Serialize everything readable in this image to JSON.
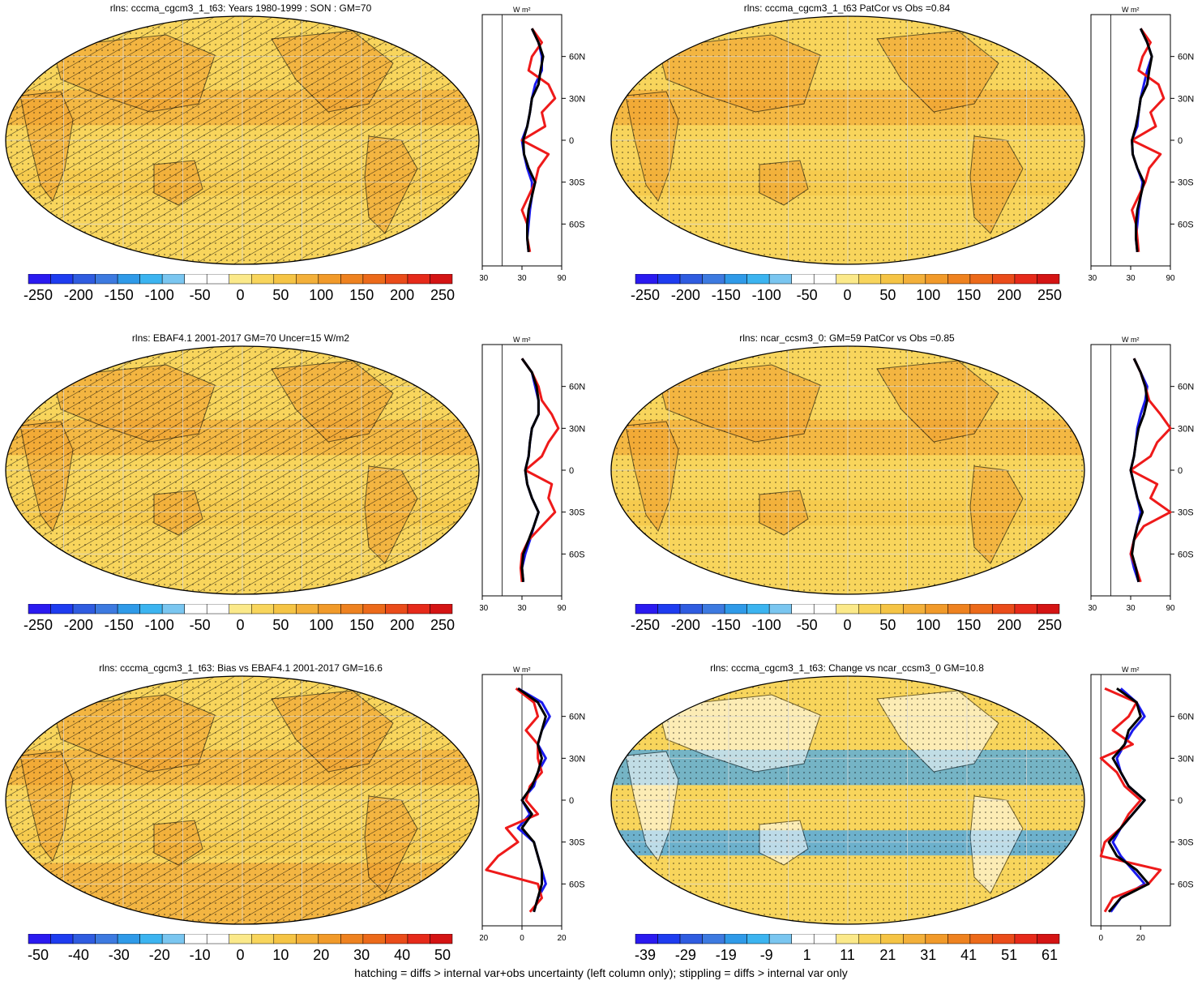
{
  "caption": "hatching = diffs > internal var+obs uncertainty (left column only); stippling = diffs > internal var only",
  "colors": {
    "map_fill": "#f8d55c",
    "map_warm": "#f0a030",
    "map_cool": "#4aa8e8",
    "profile_blue": "#1a1aee",
    "profile_red": "#ee1a1a",
    "profile_black": "#000000"
  },
  "chart_data": [
    {
      "type": "map_with_zonal_profile",
      "title": "rlns: cccma_cgcm3_1_t63: Years 1980-1999 : SON : GM=70",
      "colorbar_ticks": [
        "-250",
        "-200",
        "-150",
        "-100",
        "-50",
        "0",
        "50",
        "100",
        "150",
        "200",
        "250"
      ],
      "colorbar_colors": [
        "#2a1af0",
        "#1e3cf0",
        "#2f5ce0",
        "#3d7ae0",
        "#2f9ae8",
        "#3cb4f0",
        "#7ac6f0",
        "#ffffff",
        "#ffffff",
        "#fbe98a",
        "#f8d55c",
        "#f5c445",
        "#f3b03a",
        "#f19a2a",
        "#ee8220",
        "#ec6a1a",
        "#ea4c1a",
        "#e62a1a",
        "#d41414"
      ],
      "profile_unit": "W m²",
      "profile_xticks": [
        "-30",
        "30",
        "90"
      ],
      "profile_xrange": [
        -30,
        90
      ],
      "profile_lat_ticks": [
        "60N",
        "30N",
        "0",
        "30S",
        "60S"
      ],
      "hatching": true,
      "profile": {
        "lat": [
          80,
          70,
          60,
          50,
          40,
          30,
          20,
          10,
          0,
          -10,
          -20,
          -30,
          -40,
          -50,
          -60,
          -70,
          -80
        ],
        "blue": [
          45,
          55,
          60,
          60,
          50,
          45,
          42,
          38,
          30,
          33,
          38,
          45,
          45,
          42,
          40,
          38,
          40
        ],
        "red": [
          45,
          60,
          45,
          40,
          70,
          80,
          60,
          65,
          30,
          70,
          55,
          50,
          40,
          30,
          38,
          38,
          42
        ],
        "black": [
          45,
          55,
          62,
          58,
          55,
          45,
          42,
          38,
          32,
          33,
          40,
          50,
          45,
          40,
          38,
          38,
          40
        ]
      }
    },
    {
      "type": "map_with_zonal_profile",
      "title": "rlns: cccma_cgcm3_1_t63 PatCor vs Obs =0.84",
      "colorbar_ticks": [
        "-250",
        "-200",
        "-150",
        "-100",
        "-50",
        "0",
        "50",
        "100",
        "150",
        "200",
        "250"
      ],
      "colorbar_colors": [
        "#2a1af0",
        "#1e3cf0",
        "#2f5ce0",
        "#3d7ae0",
        "#2f9ae8",
        "#3cb4f0",
        "#7ac6f0",
        "#ffffff",
        "#ffffff",
        "#fbe98a",
        "#f8d55c",
        "#f5c445",
        "#f3b03a",
        "#f19a2a",
        "#ee8220",
        "#ec6a1a",
        "#ea4c1a",
        "#e62a1a",
        "#d41414"
      ],
      "profile_unit": "W m²",
      "profile_xticks": [
        "-30",
        "30",
        "90"
      ],
      "profile_xrange": [
        -30,
        90
      ],
      "profile_lat_ticks": [
        "60N",
        "30N",
        "0",
        "30S",
        "60S"
      ],
      "hatching": false,
      "profile": {
        "lat": [
          80,
          70,
          60,
          50,
          40,
          30,
          20,
          10,
          0,
          -10,
          -20,
          -30,
          -40,
          -50,
          -60,
          -70,
          -80
        ],
        "blue": [
          45,
          55,
          62,
          55,
          50,
          45,
          42,
          40,
          32,
          33,
          40,
          48,
          45,
          42,
          40,
          38,
          40
        ],
        "red": [
          45,
          60,
          48,
          42,
          72,
          80,
          60,
          68,
          32,
          75,
          58,
          52,
          42,
          32,
          38,
          40,
          42
        ],
        "black": [
          45,
          55,
          62,
          58,
          55,
          45,
          42,
          38,
          32,
          33,
          40,
          50,
          45,
          40,
          38,
          38,
          40
        ]
      }
    },
    {
      "type": "map_with_zonal_profile",
      "title": "rlns: EBAF4.1 2001-2017 GM=70 Uncer=15 W/m2",
      "colorbar_ticks": [
        "-250",
        "-200",
        "-150",
        "-100",
        "-50",
        "0",
        "50",
        "100",
        "150",
        "200",
        "250"
      ],
      "colorbar_colors": [
        "#2a1af0",
        "#1e3cf0",
        "#2f5ce0",
        "#3d7ae0",
        "#2f9ae8",
        "#3cb4f0",
        "#7ac6f0",
        "#ffffff",
        "#ffffff",
        "#fbe98a",
        "#f8d55c",
        "#f5c445",
        "#f3b03a",
        "#f19a2a",
        "#ee8220",
        "#ec6a1a",
        "#ea4c1a",
        "#e62a1a",
        "#d41414"
      ],
      "profile_unit": "W m²",
      "profile_xticks": [
        "-30",
        "30",
        "90"
      ],
      "profile_xrange": [
        -30,
        90
      ],
      "profile_lat_ticks": [
        "60N",
        "30N",
        "0",
        "30S",
        "60S"
      ],
      "hatching": true,
      "profile": {
        "lat": [
          80,
          70,
          60,
          50,
          40,
          30,
          20,
          10,
          0,
          -10,
          -20,
          -30,
          -40,
          -50,
          -60,
          -70,
          -80
        ],
        "blue": [
          30,
          45,
          50,
          55,
          55,
          45,
          42,
          40,
          35,
          38,
          45,
          55,
          48,
          42,
          35,
          30,
          32
        ],
        "red": [
          30,
          45,
          55,
          60,
          75,
          85,
          70,
          60,
          35,
          75,
          70,
          80,
          60,
          40,
          30,
          28,
          30
        ],
        "black": [
          30,
          45,
          52,
          55,
          55,
          45,
          42,
          40,
          35,
          38,
          45,
          55,
          48,
          40,
          32,
          30,
          32
        ]
      }
    },
    {
      "type": "map_with_zonal_profile",
      "title": "rlns: ncar_ccsm3_0: GM=59 PatCor vs Obs =0.85",
      "colorbar_ticks": [
        "-250",
        "-200",
        "-150",
        "-100",
        "-50",
        "0",
        "50",
        "100",
        "150",
        "200",
        "250"
      ],
      "colorbar_colors": [
        "#2a1af0",
        "#1e3cf0",
        "#2f5ce0",
        "#3d7ae0",
        "#2f9ae8",
        "#3cb4f0",
        "#7ac6f0",
        "#ffffff",
        "#ffffff",
        "#fbe98a",
        "#f8d55c",
        "#f5c445",
        "#f3b03a",
        "#f19a2a",
        "#ee8220",
        "#ec6a1a",
        "#ea4c1a",
        "#e62a1a",
        "#d41414"
      ],
      "profile_unit": "W m²",
      "profile_xticks": [
        "-30",
        "30",
        "90"
      ],
      "profile_xrange": [
        -30,
        90
      ],
      "profile_lat_ticks": [
        "60N",
        "30N",
        "0",
        "30S",
        "60S"
      ],
      "hatching": false,
      "profile": {
        "lat": [
          80,
          70,
          60,
          50,
          40,
          30,
          20,
          10,
          0,
          -10,
          -20,
          -30,
          -40,
          -50,
          -60,
          -70,
          -80
        ],
        "blue": [
          35,
          45,
          55,
          52,
          45,
          40,
          38,
          35,
          30,
          35,
          40,
          45,
          40,
          35,
          30,
          35,
          42
        ],
        "red": [
          35,
          45,
          52,
          58,
          75,
          90,
          70,
          60,
          30,
          70,
          60,
          90,
          50,
          35,
          30,
          38,
          45
        ],
        "black": [
          35,
          45,
          52,
          55,
          50,
          42,
          38,
          35,
          30,
          35,
          40,
          48,
          40,
          35,
          32,
          38,
          42
        ]
      }
    },
    {
      "type": "map_with_zonal_profile",
      "title": "rlns: cccma_cgcm3_1_t63: Bias vs EBAF4.1 2001-2017  GM=16.6",
      "colorbar_ticks": [
        "-50",
        "-40",
        "-30",
        "-20",
        "-10",
        "0",
        "10",
        "20",
        "30",
        "40",
        "50"
      ],
      "colorbar_colors": [
        "#2a1af0",
        "#1e3cf0",
        "#2f5ce0",
        "#3d7ae0",
        "#2f9ae8",
        "#3cb4f0",
        "#7ac6f0",
        "#ffffff",
        "#ffffff",
        "#fbe98a",
        "#f8d55c",
        "#f5c445",
        "#f3b03a",
        "#f19a2a",
        "#ee8220",
        "#ec6a1a",
        "#ea4c1a",
        "#e62a1a",
        "#d41414"
      ],
      "profile_unit": "W m²",
      "profile_xticks": [
        "-20",
        "0",
        "20"
      ],
      "profile_xrange": [
        -20,
        20
      ],
      "profile_lat_ticks": [
        "60N",
        "30N",
        "0",
        "30S",
        "60S"
      ],
      "hatching": true,
      "profile": {
        "lat": [
          80,
          70,
          60,
          50,
          40,
          30,
          20,
          10,
          0,
          -10,
          -20,
          -30,
          -40,
          -50,
          -60,
          -70,
          -80
        ],
        "blue": [
          -2,
          10,
          14,
          10,
          8,
          12,
          8,
          6,
          0,
          4,
          -2,
          6,
          8,
          10,
          12,
          8,
          6
        ],
        "red": [
          -3,
          6,
          8,
          2,
          8,
          8,
          10,
          4,
          2,
          8,
          -8,
          -2,
          -12,
          -18,
          8,
          10,
          4
        ],
        "black": [
          -2,
          8,
          12,
          10,
          8,
          10,
          8,
          5,
          0,
          5,
          0,
          6,
          8,
          10,
          10,
          8,
          6
        ]
      }
    },
    {
      "type": "map_with_zonal_profile",
      "title": "rlns: cccma_cgcm3_1_t63: Change vs ncar_ccsm3_0 GM=10.8",
      "colorbar_ticks": [
        "-39",
        "-29",
        "-19",
        "-9",
        "1",
        "11",
        "21",
        "31",
        "41",
        "51",
        "61"
      ],
      "colorbar_colors": [
        "#2a1af0",
        "#1e3cf0",
        "#2f5ce0",
        "#3d7ae0",
        "#2f9ae8",
        "#3cb4f0",
        "#7ac6f0",
        "#ffffff",
        "#ffffff",
        "#fbe98a",
        "#f8d55c",
        "#f5c445",
        "#f3b03a",
        "#f19a2a",
        "#ee8220",
        "#ec6a1a",
        "#ea4c1a",
        "#e62a1a",
        "#d41414"
      ],
      "profile_unit": "W m²",
      "profile_xticks": [
        "0",
        "20"
      ],
      "profile_xrange": [
        -5,
        35
      ],
      "profile_lat_ticks": [
        "60N",
        "30N",
        "0",
        "30S",
        "60S"
      ],
      "hatching": false,
      "profile": {
        "lat": [
          80,
          70,
          60,
          50,
          40,
          30,
          20,
          10,
          0,
          -10,
          -20,
          -30,
          -40,
          -50,
          -60,
          -70,
          -80
        ],
        "blue": [
          10,
          18,
          22,
          16,
          12,
          8,
          10,
          14,
          22,
          16,
          10,
          6,
          10,
          16,
          22,
          10,
          5
        ],
        "red": [
          2,
          18,
          14,
          6,
          16,
          0,
          8,
          12,
          20,
          14,
          10,
          2,
          0,
          30,
          24,
          6,
          2
        ],
        "black": [
          8,
          18,
          20,
          14,
          12,
          6,
          10,
          14,
          22,
          16,
          10,
          4,
          8,
          18,
          24,
          10,
          4
        ]
      }
    }
  ]
}
